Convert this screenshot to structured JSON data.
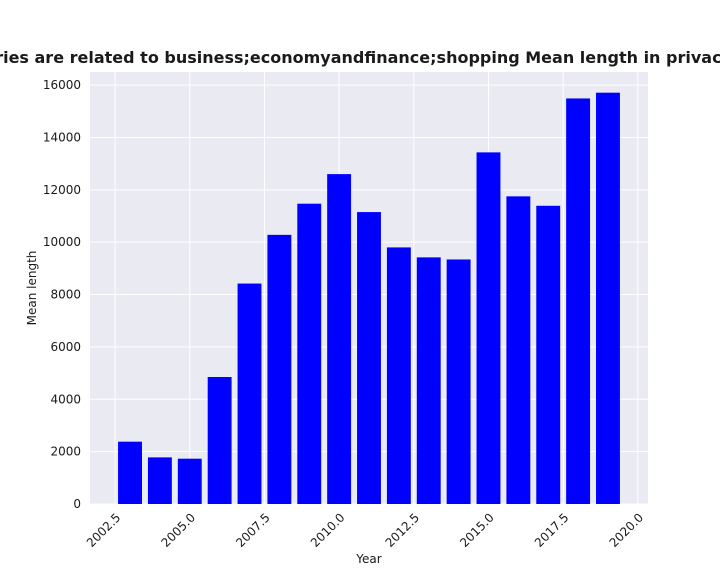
{
  "chart_data": {
    "type": "bar",
    "title": "Categories are related to business;economyandfinance;shopping Mean length in privacy policies",
    "xlabel": "Year",
    "ylabel": "Mean length",
    "x": [
      2003,
      2004,
      2005,
      2006,
      2007,
      2008,
      2009,
      2010,
      2011,
      2012,
      2013,
      2014,
      2015,
      2016,
      2017,
      2018,
      2019
    ],
    "values": [
      2380,
      1780,
      1730,
      4850,
      8420,
      10280,
      11470,
      12600,
      11150,
      9800,
      9420,
      9340,
      13430,
      11750,
      11390,
      15490,
      15710
    ],
    "xlim": [
      2001.66,
      2020.34
    ],
    "ylim": [
      0,
      16500
    ],
    "xticks": [
      2002.5,
      2005.0,
      2007.5,
      2010.0,
      2012.5,
      2015.0,
      2017.5,
      2020.0
    ],
    "xtick_labels": [
      "2002.5",
      "2005.0",
      "2007.5",
      "2010.0",
      "2012.5",
      "2015.0",
      "2017.5",
      "2020.0"
    ],
    "yticks": [
      0,
      2000,
      4000,
      6000,
      8000,
      10000,
      12000,
      14000,
      16000
    ],
    "ytick_labels": [
      "0",
      "2000",
      "4000",
      "6000",
      "8000",
      "10000",
      "12000",
      "14000",
      "16000"
    ],
    "bar_color": "#0000ff",
    "background_color": "#eaeaf2",
    "grid": true
  }
}
